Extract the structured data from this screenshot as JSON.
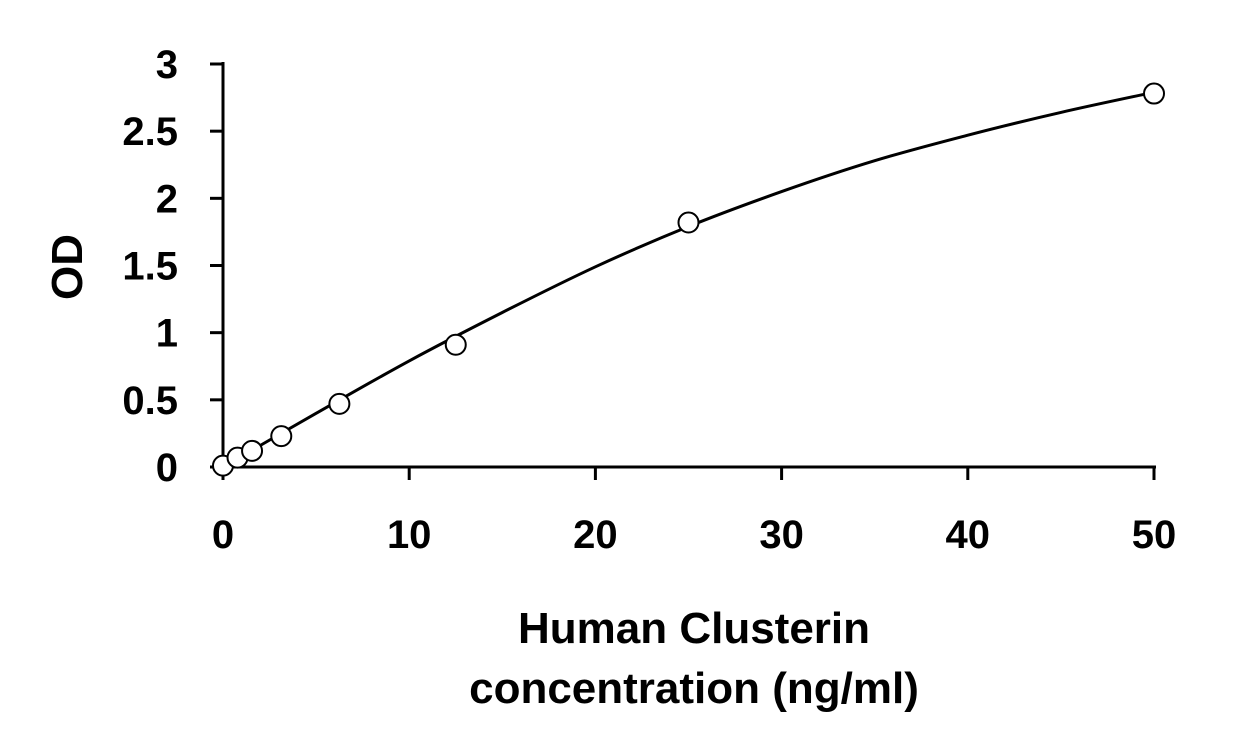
{
  "chart_data": {
    "type": "scatter",
    "title": "",
    "xlabel_lines": [
      "Human Clusterin",
      "concentration (ng/ml)"
    ],
    "ylabel": "OD",
    "xlim": [
      0,
      50
    ],
    "ylim": [
      0,
      3
    ],
    "x_ticks": [
      0,
      10,
      20,
      30,
      40,
      50
    ],
    "x_tick_labels": [
      "0",
      "10",
      "20",
      "30",
      "40",
      "50"
    ],
    "y_ticks": [
      0,
      0.5,
      1,
      1.5,
      2,
      2.5,
      3
    ],
    "y_tick_labels": [
      "0",
      "0.5",
      "1",
      "1.5",
      "2",
      "2.5",
      "3"
    ],
    "grid": false,
    "legend": "none",
    "series": [
      {
        "marker": "open-circle",
        "x": [
          0,
          0.78,
          1.56,
          3.13,
          6.25,
          12.5,
          25,
          50
        ],
        "y": [
          0.01,
          0.07,
          0.12,
          0.23,
          0.47,
          0.91,
          1.82,
          2.78
        ]
      }
    ],
    "fit_curve": {
      "style": "smooth-line",
      "x": [
        0,
        5,
        10,
        15,
        20,
        25,
        30,
        35,
        40,
        45,
        50
      ],
      "y": [
        0.0,
        0.4,
        0.79,
        1.15,
        1.49,
        1.79,
        2.05,
        2.28,
        2.47,
        2.64,
        2.79
      ]
    },
    "colors": {
      "axis": "#000000",
      "marker_stroke": "#000000",
      "curve": "#000000"
    }
  }
}
